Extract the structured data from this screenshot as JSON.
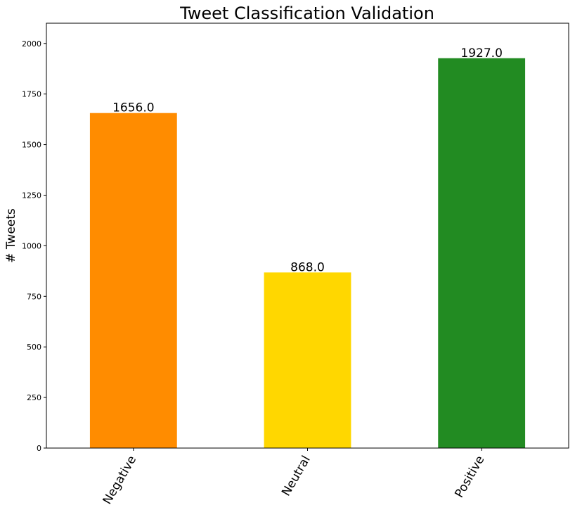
{
  "chart_data": {
    "type": "bar",
    "title": "Tweet Classification Validation",
    "xlabel": "",
    "ylabel": "# Tweets",
    "categories": [
      "Negative",
      "Neutral",
      "Positive"
    ],
    "values": [
      1656.0,
      868.0,
      1927.0
    ],
    "value_labels": [
      "1656.0",
      "868.0",
      "1927.0"
    ],
    "colors": [
      "#ff8c00",
      "#ffd700",
      "#228b22"
    ],
    "ylim": [
      0,
      2100
    ],
    "yticks": [
      0,
      250,
      500,
      750,
      1000,
      1250,
      1500,
      1750,
      2000
    ],
    "ytick_labels": [
      "0",
      "250",
      "500",
      "750",
      "1000",
      "1250",
      "1500",
      "1750",
      "2000"
    ],
    "xtick_rotation_deg": 60,
    "grid": false,
    "legend": "none"
  }
}
